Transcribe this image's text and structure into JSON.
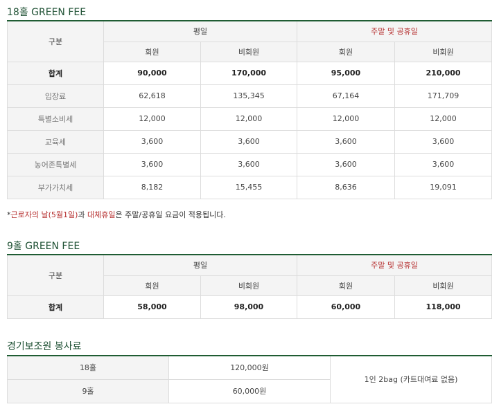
{
  "sec18": {
    "title": "18홀 GREEN FEE",
    "h_category": "구분",
    "h_weekday": "평일",
    "h_weekend": "주말 및 공휴일",
    "h_member": "회원",
    "h_nonmember": "비회원",
    "rows": [
      {
        "label": "합계",
        "v": [
          "90,000",
          "170,000",
          "95,000",
          "210,000"
        ]
      },
      {
        "label": "입장료",
        "v": [
          "62,618",
          "135,345",
          "67,164",
          "171,709"
        ]
      },
      {
        "label": "특별소비세",
        "v": [
          "12,000",
          "12,000",
          "12,000",
          "12,000"
        ]
      },
      {
        "label": "교육세",
        "v": [
          "3,600",
          "3,600",
          "3,600",
          "3,600"
        ]
      },
      {
        "label": "농어존특별세",
        "v": [
          "3,600",
          "3,600",
          "3,600",
          "3,600"
        ]
      },
      {
        "label": "부가가치세",
        "v": [
          "8,182",
          "15,455",
          "8,636",
          "19,091"
        ]
      }
    ]
  },
  "note": {
    "p1": "*",
    "p2": "근로자의 날(5월1일)",
    "p3": "과 ",
    "p4": "대체휴일",
    "p5": "은 주말/공휴일 요금이 적용됩니다."
  },
  "sec9": {
    "title": "9홀 GREEN FEE",
    "h_category": "구분",
    "h_weekday": "평일",
    "h_weekend": "주말 및 공휴일",
    "h_member": "회원",
    "h_nonmember": "비회원",
    "row": {
      "label": "합계",
      "v": [
        "58,000",
        "98,000",
        "60,000",
        "118,000"
      ]
    }
  },
  "caddy": {
    "title": "경기보조원 봉사료",
    "rows": [
      {
        "label": "18홀",
        "price": "120,000원"
      },
      {
        "label": "9홀",
        "price": "60,000원"
      }
    ],
    "note": "1인 2bag (카트대여료 없음)"
  },
  "colors": {
    "accent": "#1f5c33",
    "red": "#b52d2d",
    "header_bg": "#f4f4f4"
  }
}
